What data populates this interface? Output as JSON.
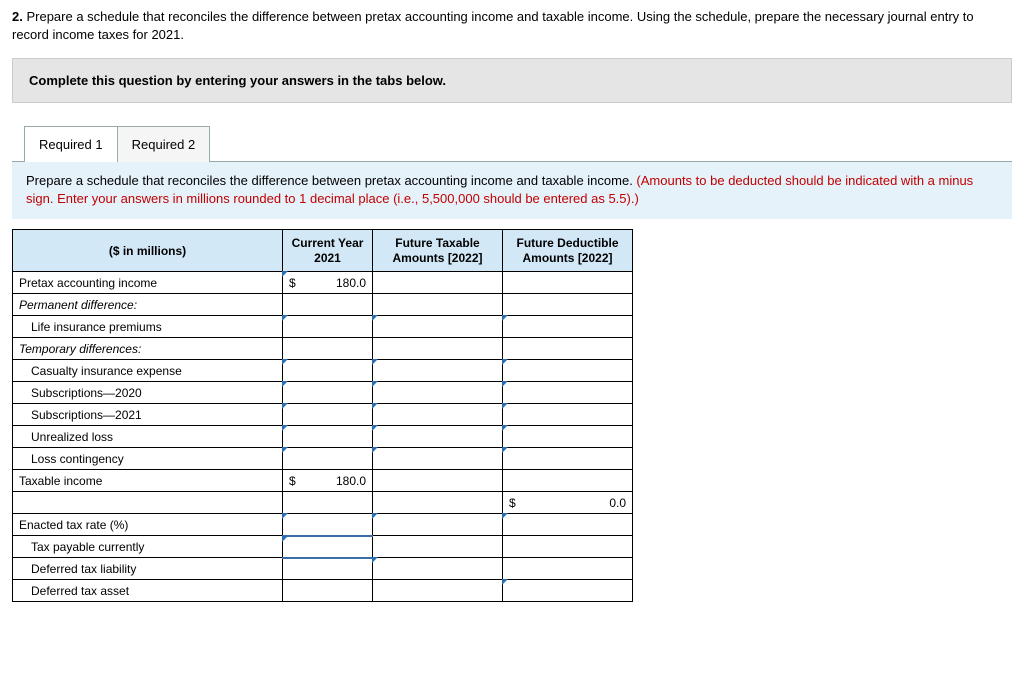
{
  "question": {
    "number": "2.",
    "text": "Prepare a schedule that reconciles the difference between pretax accounting income and taxable income. Using the schedule, prepare the necessary journal entry to record income taxes for 2021."
  },
  "instruction_bar": "Complete this question by entering your answers in the tabs below.",
  "tabs": [
    {
      "label": "Required 1",
      "active": true
    },
    {
      "label": "Required 2",
      "active": false
    }
  ],
  "panel": {
    "black_text": "Prepare a schedule that reconciles the difference between pretax accounting income and taxable income. ",
    "red_text": "(Amounts to be deducted should be indicated with a minus sign. Enter your answers in millions rounded to 1 decimal place (i.e., 5,500,000 should be entered as 5.5).)"
  },
  "table": {
    "header": {
      "label": "($ in millions)",
      "c1": "Current Year 2021",
      "c2": "Future Taxable Amounts [2022]",
      "c3": "Future Deductible Amounts [2022]"
    },
    "rows": [
      {
        "label": "Pretax accounting income",
        "indent": false,
        "italic": false,
        "cur_sym": "$",
        "cur_val": "180.0",
        "cur_input": true,
        "f1_input": false,
        "f2_input": false
      },
      {
        "label": "Permanent difference:",
        "indent": false,
        "italic": true,
        "cur_input": false,
        "f1_input": false,
        "f2_input": false
      },
      {
        "label": "Life insurance premiums",
        "indent": true,
        "italic": false,
        "cur_input": true,
        "f1_input": true,
        "f2_input": true
      },
      {
        "label": "Temporary differences:",
        "indent": false,
        "italic": true,
        "cur_input": false,
        "f1_input": false,
        "f2_input": false
      },
      {
        "label": "Casualty insurance expense",
        "indent": true,
        "italic": false,
        "cur_input": true,
        "f1_input": true,
        "f2_input": true
      },
      {
        "label": "Subscriptions—2020",
        "indent": true,
        "italic": false,
        "cur_input": true,
        "f1_input": true,
        "f2_input": true
      },
      {
        "label": "Subscriptions—2021",
        "indent": true,
        "italic": false,
        "cur_input": true,
        "f1_input": true,
        "f2_input": true
      },
      {
        "label": "Unrealized loss",
        "indent": true,
        "italic": false,
        "cur_input": true,
        "f1_input": true,
        "f2_input": true
      },
      {
        "label": "Loss contingency",
        "indent": true,
        "italic": false,
        "cur_input": true,
        "f1_input": true,
        "f2_input": true
      },
      {
        "label": "Taxable income",
        "indent": false,
        "italic": false,
        "cur_sym": "$",
        "cur_val": "180.0",
        "cur_input": false,
        "f1_input": false,
        "f2_input": false
      }
    ],
    "summary_row": {
      "f2_sym": "$",
      "f2_val": "0.0"
    },
    "lower_rows": [
      {
        "label": "Enacted tax rate (%)",
        "indent": false,
        "cur_input": true,
        "f1_input": true,
        "f2_input": true,
        "cur_underline": true
      },
      {
        "label": "Tax payable currently",
        "indent": true,
        "cur_input": true,
        "f1_input": false,
        "f2_input": false,
        "cur_underline": true
      },
      {
        "label": "Deferred tax liability",
        "indent": true,
        "cur_input": false,
        "f1_input": true,
        "f2_input": false
      },
      {
        "label": "Deferred tax asset",
        "indent": true,
        "cur_input": false,
        "f1_input": false,
        "f2_input": true
      }
    ]
  }
}
